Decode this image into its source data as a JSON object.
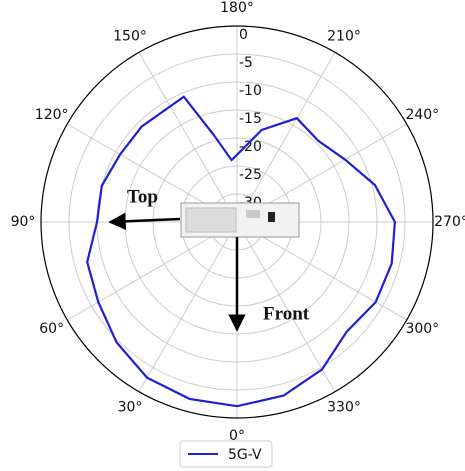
{
  "chart_data": {
    "type": "polar",
    "theta": [
      0,
      15,
      30,
      45,
      60,
      75,
      90,
      105,
      120,
      135,
      157,
      165,
      175,
      180,
      195,
      210,
      225,
      240,
      255,
      270,
      285,
      300,
      315,
      330,
      345,
      360
    ],
    "series": [
      {
        "name": "5G-V",
        "color": "#1f1fd6",
        "values": [
          -2.1,
          -2.3,
          -2.9,
          -4.6,
          -6.4,
          -7.3,
          -10,
          -10,
          -10.9,
          -10.9,
          -10.7,
          -18.9,
          -23.9,
          -23,
          -18,
          -13.6,
          -14.5,
          -12.7,
          -9.5,
          -6.8,
          -6.4,
          -6.4,
          -7.3,
          -4.6,
          -2.9,
          -2.1
        ]
      }
    ],
    "rlim": [
      -35,
      0
    ],
    "rticks": [
      0,
      -5,
      -10,
      -15,
      -20,
      -25,
      -30
    ],
    "thetaticks": [
      {
        "value": 0,
        "label": "0°"
      },
      {
        "value": 30,
        "label": "30°"
      },
      {
        "value": 60,
        "label": "60°"
      },
      {
        "value": 90,
        "label": "90°"
      },
      {
        "value": 120,
        "label": "120°"
      },
      {
        "value": 150,
        "label": "150°"
      },
      {
        "value": 180,
        "label": "180°"
      },
      {
        "value": 210,
        "label": "210°"
      },
      {
        "value": 240,
        "label": "240°"
      },
      {
        "value": 270,
        "label": "270°"
      },
      {
        "value": 300,
        "label": "300°"
      },
      {
        "value": 330,
        "label": "330°"
      }
    ],
    "theta_zero": "S",
    "theta_direction": "clockwise",
    "grid": true,
    "legend": "lower center",
    "annotations": [
      "Top",
      "Front"
    ]
  }
}
